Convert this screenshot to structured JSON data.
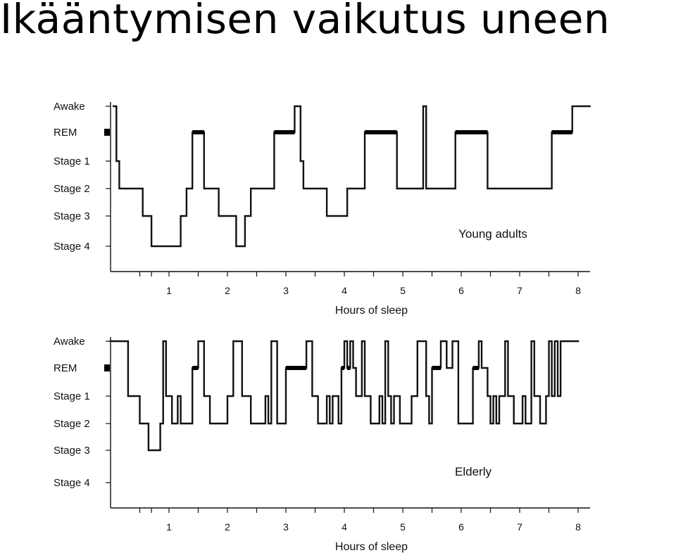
{
  "title": "Ikääntymisen vaikutus uneen",
  "chart_data": [
    {
      "type": "line",
      "annotation": "Young adults",
      "xlabel": "Hours of sleep",
      "x_ticks": [
        "1",
        "2",
        "3",
        "4",
        "5",
        "6",
        "7",
        "8"
      ],
      "xlim": [
        0,
        8.2
      ],
      "stages": [
        "Awake",
        "REM",
        "Stage 1",
        "Stage 2",
        "Stage 3",
        "Stage 4"
      ],
      "rem_marker": "REM",
      "hypnogram": [
        [
          0.05,
          "Awake"
        ],
        [
          0.1,
          "Stage 1"
        ],
        [
          0.15,
          "Stage 2"
        ],
        [
          0.55,
          "Stage 3"
        ],
        [
          0.7,
          "Stage 4"
        ],
        [
          1.2,
          "Stage 3"
        ],
        [
          1.3,
          "Stage 2"
        ],
        [
          1.4,
          "REM"
        ],
        [
          1.6,
          "Stage 2"
        ],
        [
          1.85,
          "Stage 3"
        ],
        [
          2.15,
          "Stage 4"
        ],
        [
          2.3,
          "Stage 3"
        ],
        [
          2.4,
          "Stage 2"
        ],
        [
          2.8,
          "REM"
        ],
        [
          3.15,
          "Awake"
        ],
        [
          3.25,
          "Stage 1"
        ],
        [
          3.3,
          "Stage 2"
        ],
        [
          3.7,
          "Stage 3"
        ],
        [
          4.05,
          "Stage 2"
        ],
        [
          4.35,
          "REM"
        ],
        [
          4.9,
          "Stage 2"
        ],
        [
          5.35,
          "Awake"
        ],
        [
          5.4,
          "Stage 2"
        ],
        [
          5.9,
          "REM"
        ],
        [
          6.45,
          "Stage 2"
        ],
        [
          7.55,
          "REM"
        ],
        [
          7.9,
          "Awake"
        ],
        [
          8.2,
          "Awake"
        ]
      ],
      "rem_periods": [
        [
          1.4,
          1.6
        ],
        [
          2.8,
          3.15
        ],
        [
          4.35,
          4.9
        ],
        [
          5.9,
          6.45
        ],
        [
          7.55,
          7.9
        ]
      ]
    },
    {
      "type": "line",
      "annotation": "Elderly",
      "xlabel": "Hours of sleep",
      "x_ticks": [
        "1",
        "2",
        "3",
        "4",
        "5",
        "6",
        "7",
        "8"
      ],
      "xlim": [
        0,
        8.2
      ],
      "stages": [
        "Awake",
        "REM",
        "Stage 1",
        "Stage 2",
        "Stage 3",
        "Stage 4"
      ],
      "rem_marker": "REM",
      "hypnogram": [
        [
          0.0,
          "Awake"
        ],
        [
          0.3,
          "Stage 1"
        ],
        [
          0.5,
          "Stage 2"
        ],
        [
          0.65,
          "Stage 3"
        ],
        [
          0.85,
          "Stage 2"
        ],
        [
          0.9,
          "Awake"
        ],
        [
          0.95,
          "Stage 1"
        ],
        [
          1.05,
          "Stage 2"
        ],
        [
          1.15,
          "Stage 1"
        ],
        [
          1.2,
          "Stage 2"
        ],
        [
          1.4,
          "REM"
        ],
        [
          1.5,
          "Awake"
        ],
        [
          1.6,
          "Stage 1"
        ],
        [
          1.7,
          "Stage 2"
        ],
        [
          2.0,
          "Stage 1"
        ],
        [
          2.1,
          "Awake"
        ],
        [
          2.25,
          "Stage 1"
        ],
        [
          2.4,
          "Stage 2"
        ],
        [
          2.65,
          "Stage 1"
        ],
        [
          2.7,
          "Stage 2"
        ],
        [
          2.75,
          "Awake"
        ],
        [
          2.85,
          "Stage 2"
        ],
        [
          3.0,
          "REM"
        ],
        [
          3.35,
          "Awake"
        ],
        [
          3.45,
          "Stage 1"
        ],
        [
          3.55,
          "Stage 2"
        ],
        [
          3.7,
          "Stage 1"
        ],
        [
          3.75,
          "Stage 2"
        ],
        [
          3.8,
          "Stage 1"
        ],
        [
          3.9,
          "Stage 2"
        ],
        [
          3.95,
          "REM"
        ],
        [
          4.0,
          "Awake"
        ],
        [
          4.05,
          "REM"
        ],
        [
          4.1,
          "Awake"
        ],
        [
          4.15,
          "REM"
        ],
        [
          4.2,
          "Stage 1"
        ],
        [
          4.3,
          "Awake"
        ],
        [
          4.35,
          "Stage 1"
        ],
        [
          4.45,
          "Stage 2"
        ],
        [
          4.6,
          "Stage 1"
        ],
        [
          4.65,
          "Stage 2"
        ],
        [
          4.7,
          "Awake"
        ],
        [
          4.75,
          "Stage 1"
        ],
        [
          4.8,
          "Stage 2"
        ],
        [
          4.85,
          "Stage 1"
        ],
        [
          4.95,
          "Stage 2"
        ],
        [
          5.15,
          "Stage 1"
        ],
        [
          5.25,
          "Awake"
        ],
        [
          5.4,
          "Stage 1"
        ],
        [
          5.45,
          "Stage 2"
        ],
        [
          5.5,
          "REM"
        ],
        [
          5.65,
          "Awake"
        ],
        [
          5.75,
          "REM"
        ],
        [
          5.85,
          "Awake"
        ],
        [
          5.95,
          "Stage 2"
        ],
        [
          6.2,
          "REM"
        ],
        [
          6.3,
          "Awake"
        ],
        [
          6.35,
          "REM"
        ],
        [
          6.45,
          "Stage 1"
        ],
        [
          6.5,
          "Stage 2"
        ],
        [
          6.55,
          "Stage 1"
        ],
        [
          6.6,
          "Stage 2"
        ],
        [
          6.65,
          "Stage 1"
        ],
        [
          6.75,
          "Awake"
        ],
        [
          6.8,
          "Stage 1"
        ],
        [
          6.9,
          "Stage 2"
        ],
        [
          7.05,
          "Stage 1"
        ],
        [
          7.1,
          "Stage 2"
        ],
        [
          7.2,
          "Awake"
        ],
        [
          7.25,
          "Stage 1"
        ],
        [
          7.35,
          "Stage 2"
        ],
        [
          7.45,
          "Stage 1"
        ],
        [
          7.5,
          "Awake"
        ],
        [
          7.55,
          "Stage 1"
        ],
        [
          7.6,
          "Awake"
        ],
        [
          7.65,
          "Stage 1"
        ],
        [
          7.7,
          "Awake"
        ],
        [
          8.0,
          "Awake"
        ]
      ],
      "rem_periods": [
        [
          1.4,
          1.5
        ],
        [
          3.0,
          3.35
        ],
        [
          3.95,
          4.0
        ],
        [
          4.05,
          4.1
        ],
        [
          5.5,
          5.65
        ],
        [
          6.2,
          6.3
        ]
      ]
    }
  ]
}
